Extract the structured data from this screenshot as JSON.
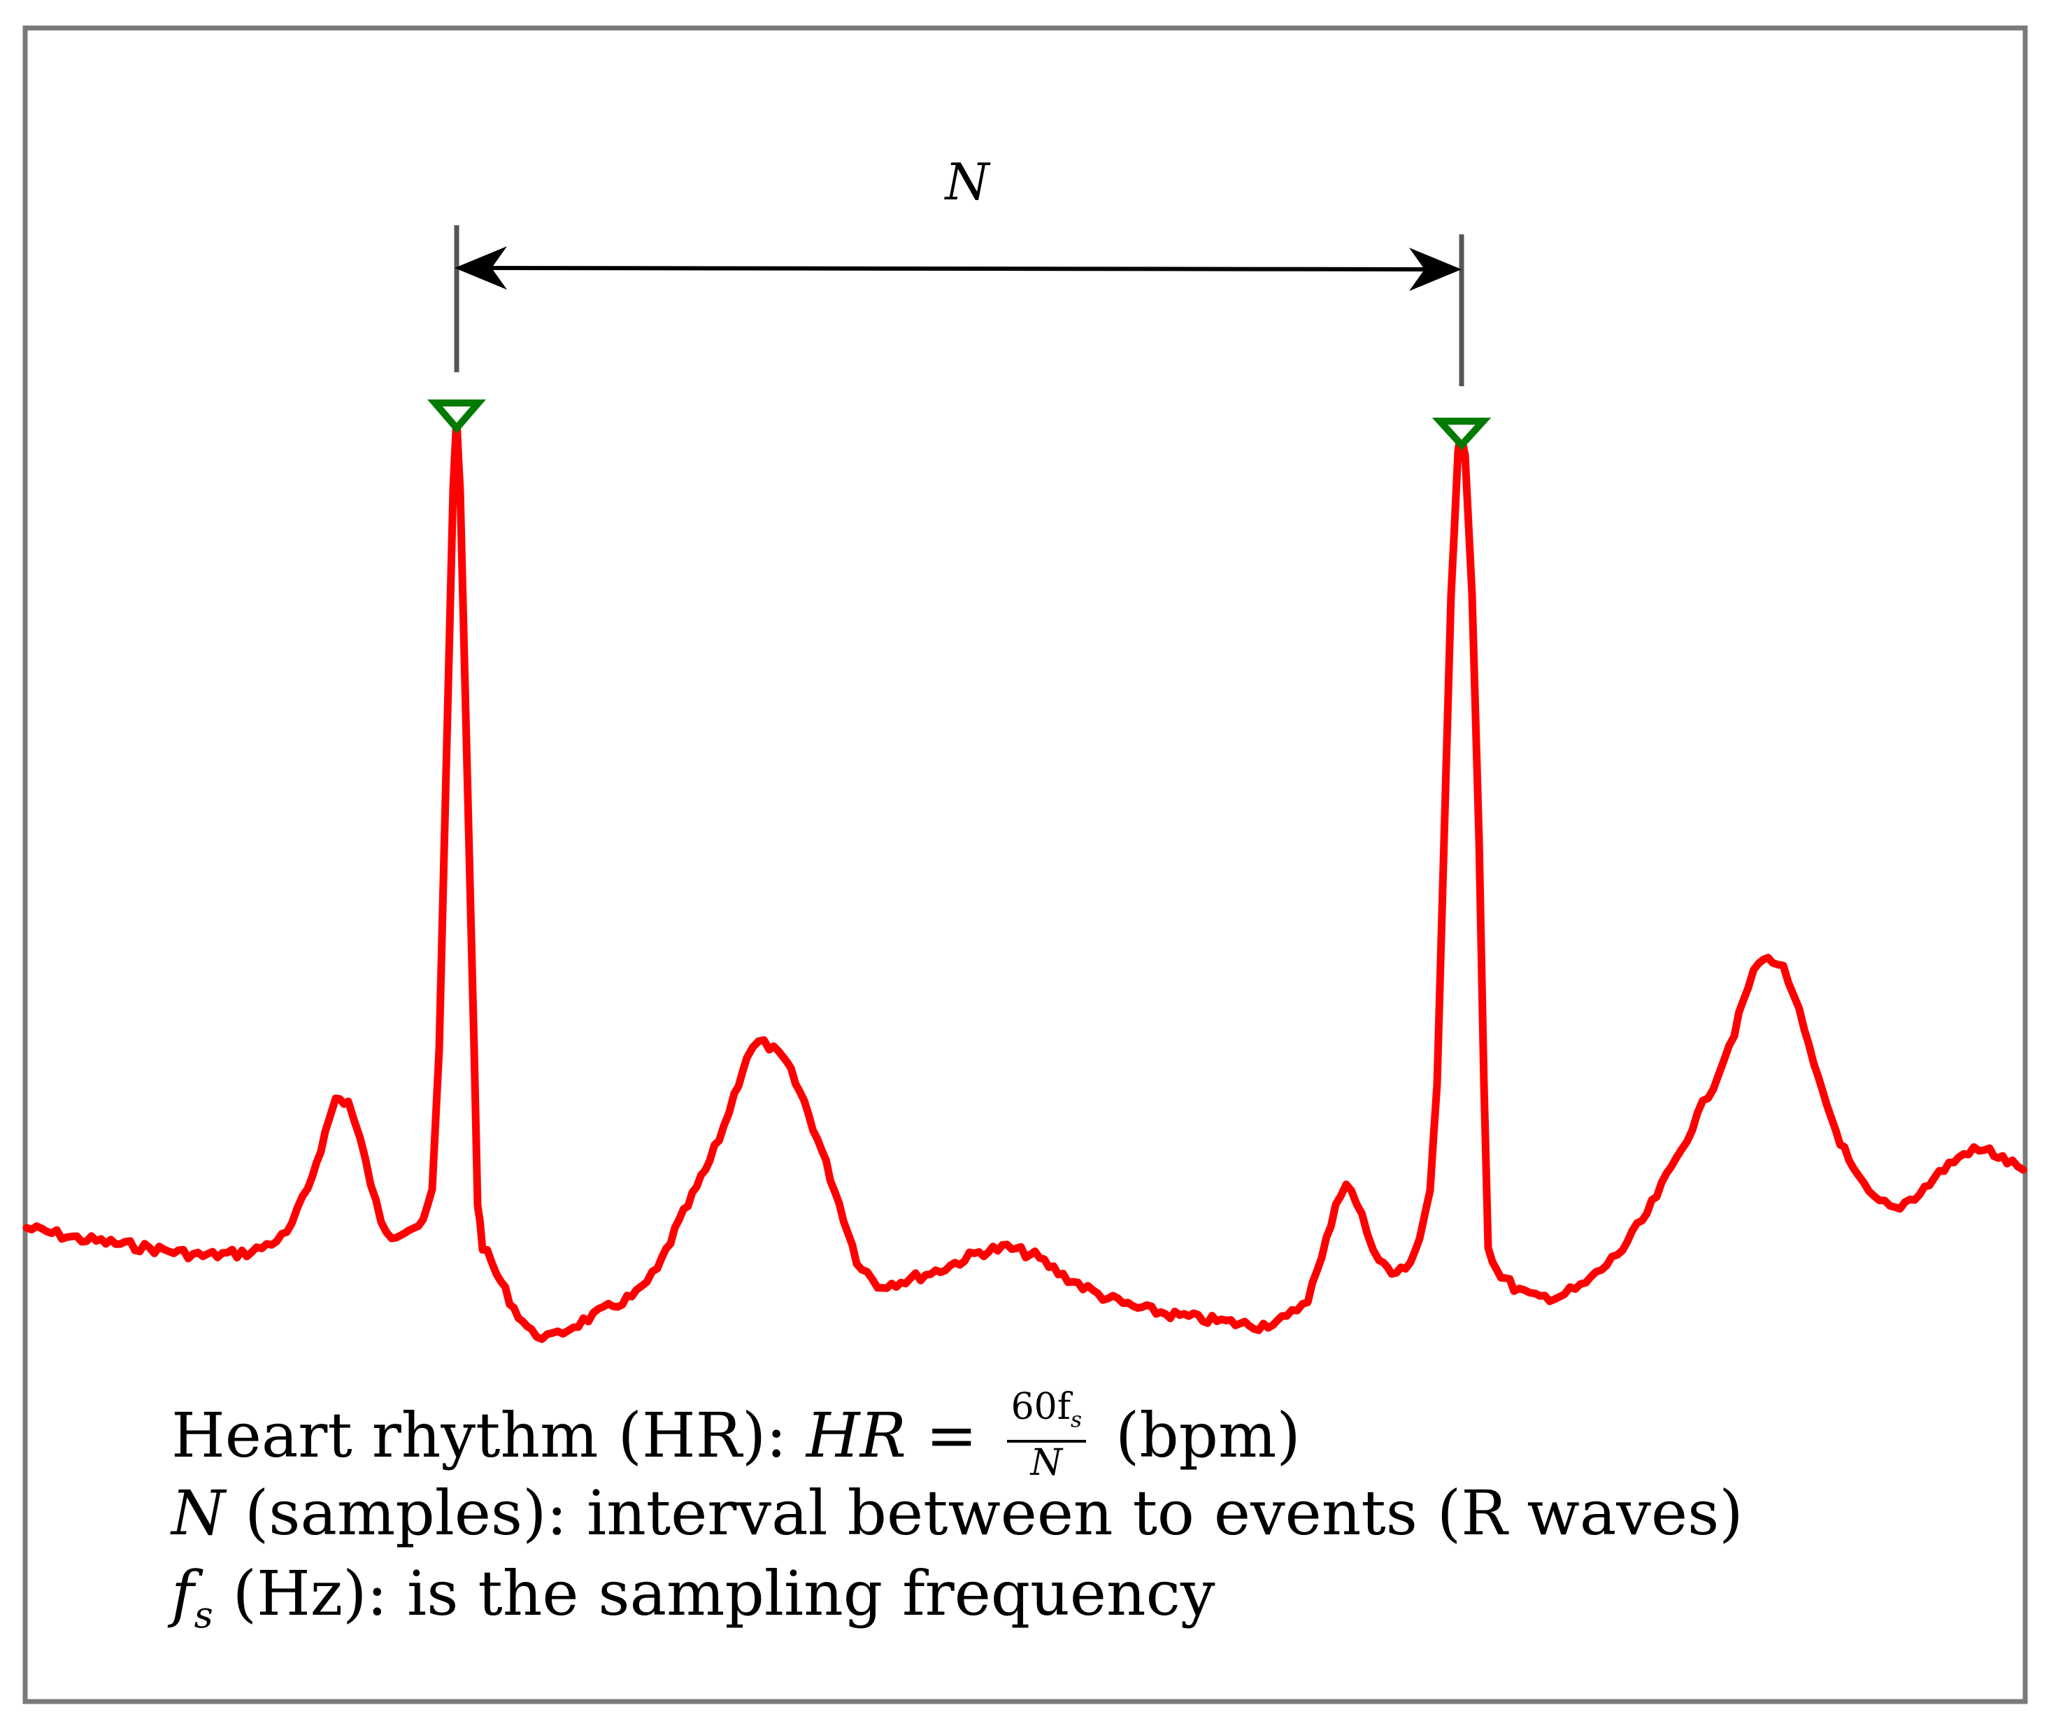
{
  "colors": {
    "frame": "#7a7a7a",
    "signal": "#ff0000",
    "marker": "#007a00",
    "arrow": "#000000",
    "tick": "#555555"
  },
  "annotation": {
    "interval_symbol": "N"
  },
  "legend": {
    "line1_text": "Heart rhythm (HR): ",
    "line1_formula_lhs": "HR",
    "line1_equals": " = ",
    "line1_frac_num": "60f",
    "line1_frac_num_sub": "s",
    "line1_frac_den": "N",
    "line1_unit": " (bpm)",
    "line2_symbol": "N",
    "line2_text": " (samples): interval between to events (R waves)",
    "line3_symbol": "f",
    "line3_symbol_sub": "s",
    "line3_text": " (Hz): is the sampling frequency"
  }
}
